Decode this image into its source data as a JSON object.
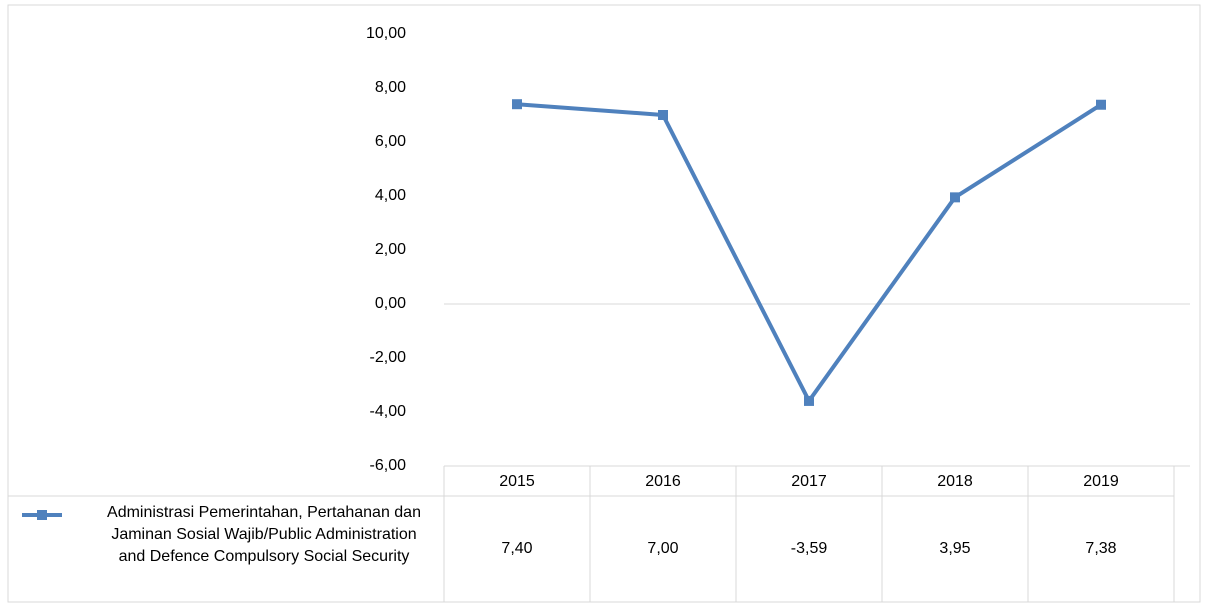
{
  "chart_data": {
    "type": "line",
    "categories": [
      "2015",
      "2016",
      "2017",
      "2018",
      "2019"
    ],
    "series": [
      {
        "name": "Administrasi Pemerintahan, Pertahanan dan Jaminan Sosial Wajib/Public Administration and Defence Compulsory Social Security",
        "color": "#4f81bd",
        "values": [
          7.4,
          7.0,
          -3.59,
          3.95,
          7.38
        ],
        "value_labels": [
          "7,40",
          "7,00",
          "-3,59",
          "3,95",
          "7,38"
        ]
      }
    ],
    "ylim": [
      -6,
      10
    ],
    "yticks": [
      {
        "value": -6,
        "label": "-6,00"
      },
      {
        "value": -4,
        "label": "-4,00"
      },
      {
        "value": -2,
        "label": "-2,00"
      },
      {
        "value": 0,
        "label": "0,00"
      },
      {
        "value": 2,
        "label": "2,00"
      },
      {
        "value": 4,
        "label": "4,00"
      },
      {
        "value": 6,
        "label": "6,00"
      },
      {
        "value": 8,
        "label": "8,00"
      },
      {
        "value": 10,
        "label": "10,00"
      }
    ],
    "data_table": true
  }
}
